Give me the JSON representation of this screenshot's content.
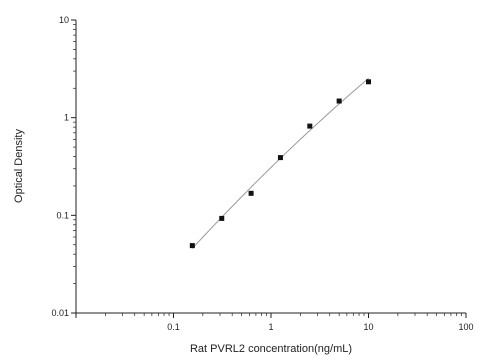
{
  "chart_data": {
    "type": "scatter",
    "title": "",
    "xlabel": "Rat PVRL2 concentration(ng/mL)",
    "ylabel": "Optical Density",
    "x_scale": "log",
    "y_scale": "log",
    "xlim": [
      0.01,
      100
    ],
    "ylim": [
      0.01,
      10
    ],
    "x_tick_labels": [
      "0.1",
      "1",
      "10",
      "100"
    ],
    "y_tick_labels": [
      "0.01",
      "0.1",
      "1",
      "10"
    ],
    "grid": false,
    "legend": "none",
    "series": [
      {
        "x": [
          0.156,
          0.3125,
          0.625,
          1.25,
          2.5,
          5,
          10
        ],
        "y": [
          0.049,
          0.093,
          0.168,
          0.39,
          0.82,
          1.48,
          2.33
        ],
        "marker": "square",
        "fit_curve": true
      }
    ],
    "colors": {
      "marker": "#111111",
      "curve": "#999999",
      "axis": "#222222"
    }
  }
}
